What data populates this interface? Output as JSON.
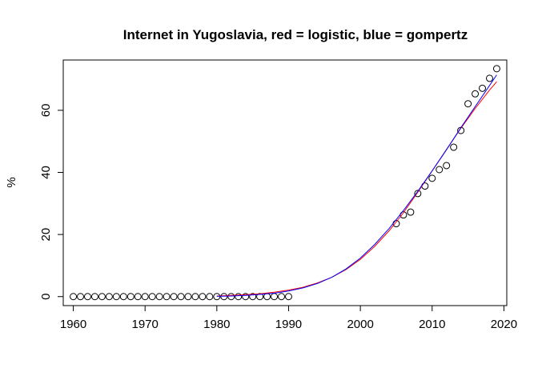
{
  "chart_data": {
    "type": "scatter",
    "title": "Internet in Yugoslavia, red = logistic, blue = gompertz",
    "xlabel": "",
    "ylabel": "%",
    "xlim": [
      1958.6,
      2020.4
    ],
    "ylim": [
      -2.9,
      76.2
    ],
    "grid": false,
    "x_ticks": [
      1960,
      1970,
      1980,
      1990,
      2000,
      2010,
      2020
    ],
    "y_ticks": [
      0,
      20,
      40,
      60
    ],
    "series": [
      {
        "type": "points",
        "marker": "open-circle",
        "color": "#000000",
        "x": [
          1960,
          1961,
          1962,
          1963,
          1964,
          1965,
          1966,
          1967,
          1968,
          1969,
          1970,
          1971,
          1972,
          1973,
          1974,
          1975,
          1976,
          1977,
          1978,
          1979,
          1980,
          1981,
          1982,
          1983,
          1984,
          1985,
          1986,
          1987,
          1988,
          1989,
          1990,
          2005,
          2006,
          2007,
          2008,
          2009,
          2010,
          2011,
          2012,
          2013,
          2014,
          2015,
          2016,
          2017,
          2018,
          2019
        ],
        "y": [
          0,
          0,
          0,
          0,
          0,
          0,
          0,
          0,
          0,
          0,
          0,
          0,
          0,
          0,
          0,
          0,
          0,
          0,
          0,
          0,
          0,
          0,
          0,
          0,
          0,
          0,
          0,
          0,
          0,
          0,
          0,
          23.5,
          26.3,
          27.2,
          33.2,
          35.6,
          38.1,
          40.9,
          42.2,
          48.1,
          53.5,
          62.1,
          65.3,
          67.1,
          70.3,
          73.4
        ]
      },
      {
        "name": "logistic",
        "type": "line",
        "color": "#ff0000",
        "x": [
          1980,
          1982,
          1984,
          1986,
          1988,
          1990,
          1992,
          1994,
          1996,
          1998,
          2000,
          2002,
          2004,
          2006,
          2008,
          2010,
          2012,
          2014,
          2016,
          2018,
          2019
        ],
        "y": [
          0.2,
          0.4,
          0.6,
          0.9,
          1.4,
          2.1,
          3.0,
          4.4,
          6.2,
          8.7,
          12.0,
          16.2,
          21.2,
          27.0,
          33.6,
          40.5,
          47.4,
          54.2,
          60.6,
          66.5,
          69.2
        ]
      },
      {
        "name": "gompertz",
        "type": "line",
        "color": "#0000ff",
        "x": [
          1980,
          1982,
          1984,
          1986,
          1988,
          1990,
          1992,
          1994,
          1996,
          1998,
          2000,
          2002,
          2004,
          2006,
          2008,
          2010,
          2012,
          2014,
          2016,
          2018,
          2019
        ],
        "y": [
          0.1,
          0.2,
          0.4,
          0.7,
          1.1,
          1.8,
          2.8,
          4.2,
          6.2,
          8.9,
          12.4,
          16.8,
          21.9,
          27.7,
          33.9,
          40.5,
          47.3,
          54.4,
          61.2,
          68.0,
          71.4
        ]
      }
    ]
  }
}
